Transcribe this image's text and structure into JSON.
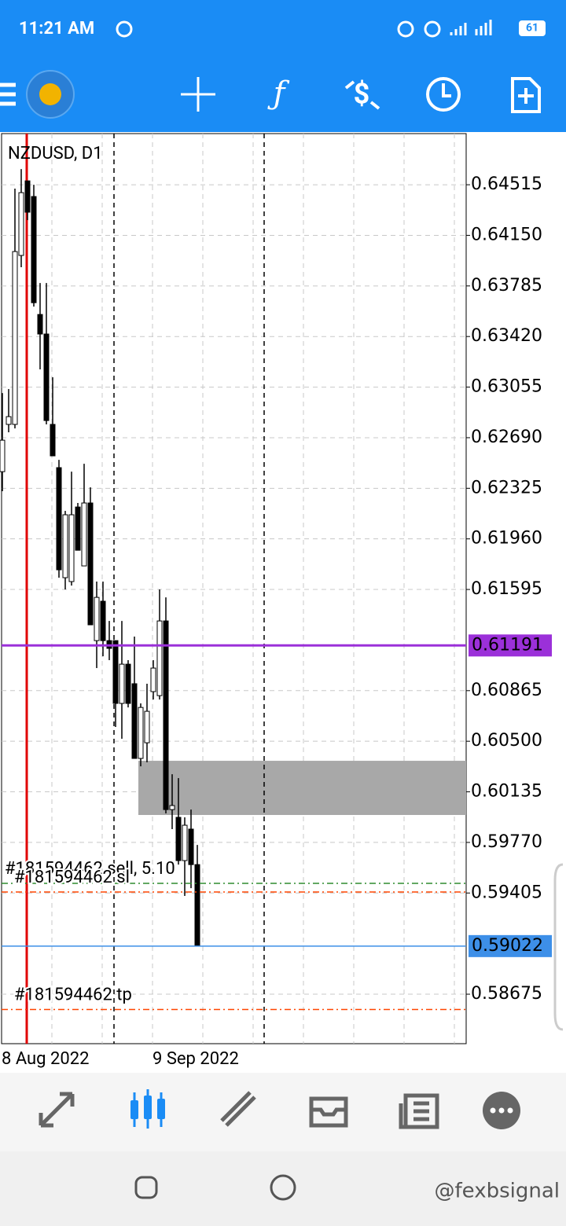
{
  "status_bar": {
    "time": "11:21 AM",
    "battery": "61"
  },
  "chart_data": {
    "type": "candlestick",
    "title": "NZDUSD, D1",
    "categories": [
      "8 Aug 2022",
      null,
      null,
      null,
      null,
      null,
      null,
      null,
      null,
      null,
      null,
      null,
      null,
      null,
      null,
      null,
      null,
      null,
      null,
      null,
      null,
      null,
      null,
      null,
      "9 Sep 2022",
      null,
      null,
      null,
      null,
      null,
      null,
      null
    ],
    "series": [
      {
        "up_color": "#ffffff",
        "down_color": "#000000",
        "line_color": "#000000",
        "open": [
          0.62445,
          0.62786,
          0.62786,
          0.64005,
          0.64543,
          0.6443,
          0.63579,
          0.63438,
          0.62786,
          0.62474,
          0.6168,
          0.61652,
          0.6219,
          0.61765,
          0.62219,
          0.61226,
          0.6151,
          0.61226,
          0.61226,
          0.60773,
          0.61056,
          0.60915,
          0.60376,
          0.60489,
          0.60858,
          0.60829,
          0.61368,
          0.60007,
          0.59951,
          0.59639,
          0.59866,
          0.5961
        ],
        "high": [
          0.63012,
          0.63041,
          0.64487,
          0.64628,
          0.64543,
          0.64515,
          0.63806,
          0.63806,
          0.63126,
          0.6253,
          0.62162,
          0.62445,
          0.62219,
          0.62502,
          0.62332,
          0.61652,
          0.61652,
          0.61368,
          0.61226,
          0.61368,
          0.61085,
          0.61255,
          0.60773,
          0.60915,
          0.61085,
          0.61595,
          0.61538,
          0.60262,
          0.60234,
          0.59951,
          0.60007,
          0.59752
        ],
        "low": [
          0.62304,
          0.62729,
          0.62757,
          0.6392,
          0.6426,
          0.63636,
          0.63183,
          0.62786,
          0.62559,
          0.6168,
          0.61595,
          0.61623,
          0.61878,
          0.61765,
          0.6134,
          0.61028,
          0.61113,
          0.61085,
          0.60603,
          0.60518,
          0.60744,
          0.60376,
          0.60319,
          0.60348,
          0.60801,
          0.60801,
          0.59979,
          0.59866,
          0.5961,
          0.59384,
          0.5944,
          0.59022
        ],
        "close": [
          0.62672,
          0.62842,
          0.64033,
          0.64458,
          0.64317,
          0.63664,
          0.63438,
          0.62814,
          0.62559,
          0.61737,
          0.62134,
          0.62134,
          0.61878,
          0.62219,
          0.6134,
          0.61538,
          0.61226,
          0.6117,
          0.60773,
          0.61056,
          0.60773,
          0.60376,
          0.60744,
          0.60716,
          0.61028,
          0.61368,
          0.60007,
          0.60036,
          0.59639,
          0.59894,
          0.5961,
          0.59022
        ]
      }
    ],
    "ylim": [
      0.58318,
      0.64884
    ],
    "yticks": [
      0.64515,
      {
        "value": 0.6415,
        "label": "0.64150"
      },
      0.63785,
      {
        "value": 0.6342,
        "label": "0.63420"
      },
      0.63055,
      {
        "value": 0.6269,
        "label": "0.62690"
      },
      0.62325,
      {
        "value": 0.6196,
        "label": "0.61960"
      },
      0.61595,
      0.60865,
      {
        "value": 0.605,
        "label": "0.60500"
      },
      0.60135,
      {
        "value": 0.5977,
        "label": "0.59770"
      },
      0.59405,
      0.58675
    ],
    "grid": true,
    "price_lines": [
      {
        "value": 0.61191,
        "color": "#9b30d9"
      },
      {
        "value": 0.59022,
        "color": "#3d8fe8"
      }
    ],
    "order_lines": [
      {
        "value": 0.59475,
        "color": "#2e8b2e",
        "label": "#181594462 sell, 5.10"
      },
      {
        "value": 0.59412,
        "color": "#ff4500",
        "label": "#181594462 sl"
      },
      {
        "value": 0.58565,
        "color": "#ff4500",
        "label": "#181594462 tp"
      }
    ],
    "zones": [
      {
        "high": 0.60359,
        "low": 0.59968,
        "color": "#a8a8a8"
      }
    ]
  },
  "watermark": "@fexbsignal"
}
